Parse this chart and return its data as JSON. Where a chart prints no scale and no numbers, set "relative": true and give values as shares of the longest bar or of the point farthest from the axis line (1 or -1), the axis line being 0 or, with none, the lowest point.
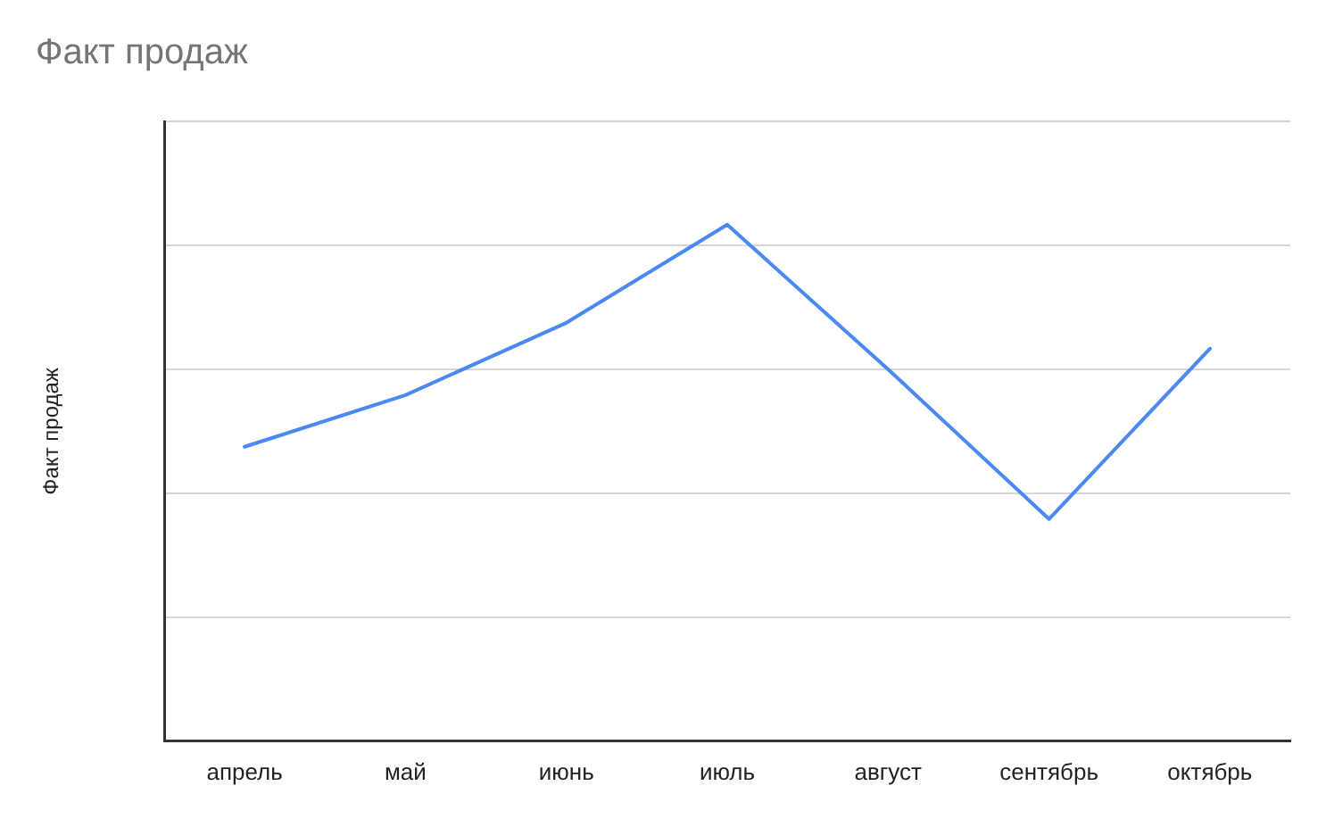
{
  "chart_data": {
    "type": "line",
    "title": "Факт продаж",
    "ylabel": "Факт продаж",
    "categories": [
      "апрель",
      "май",
      "июнь",
      "июль",
      "август",
      "сентябрь",
      "октябрь"
    ],
    "series": [
      {
        "color": "#4a89f3",
        "values": [
          0.57,
          0.67,
          0.81,
          1,
          0.72,
          0.43,
          0.76
        ]
      }
    ],
    "relative": true,
    "grid": "y",
    "marker": "none",
    "line_style": "solid"
  }
}
